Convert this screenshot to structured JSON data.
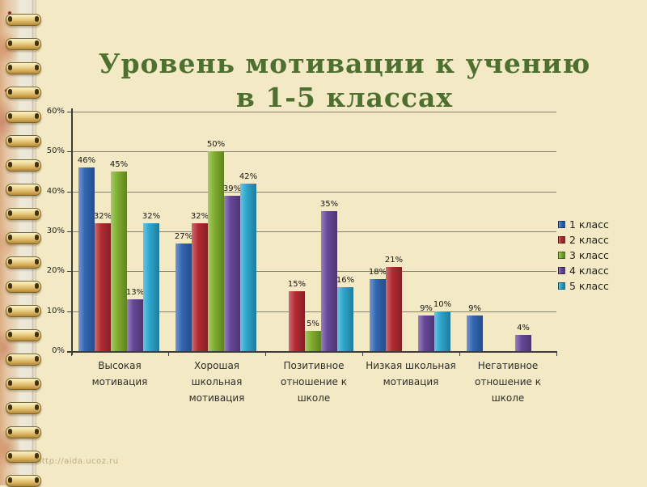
{
  "slide": {
    "title_lines": [
      "Уровень мотивации к учению",
      "в 1-5 классах"
    ],
    "title_color": "#4d7030",
    "background_color": "#f3e9c4",
    "watermark": "http://aida.ucoz.ru"
  },
  "chart_data": {
    "type": "bar",
    "title": "Уровень мотивации к учению в 1-5 классах",
    "categories": [
      "Высокая мотивация",
      "Хорошая школьная мотивация",
      "Позитивное отношение к школе",
      "Низкая школьная мотивация",
      "Негативное отношение к школе"
    ],
    "series": [
      {
        "name": "1 класс",
        "color": "#3366b3",
        "values": [
          46,
          27,
          0,
          18,
          9
        ]
      },
      {
        "name": "2 класс",
        "color": "#b32a31",
        "values": [
          32,
          32,
          15,
          21,
          0
        ]
      },
      {
        "name": "3 класс",
        "color": "#7fae2d",
        "values": [
          45,
          50,
          5,
          0,
          0
        ]
      },
      {
        "name": "4 класс",
        "color": "#654798",
        "values": [
          13,
          39,
          35,
          9,
          4
        ]
      },
      {
        "name": "5 класс",
        "color": "#2aa5cd",
        "values": [
          32,
          42,
          16,
          10,
          0
        ]
      }
    ],
    "xlabel": "",
    "ylabel": "",
    "ylim": [
      0,
      60
    ],
    "ytick_step": 10,
    "ytick_labels": [
      "0%",
      "10%",
      "20%",
      "30%",
      "40%",
      "50%",
      "60%"
    ],
    "value_suffix": "%",
    "grid": true,
    "legend_position": "right",
    "data_labels": true
  }
}
